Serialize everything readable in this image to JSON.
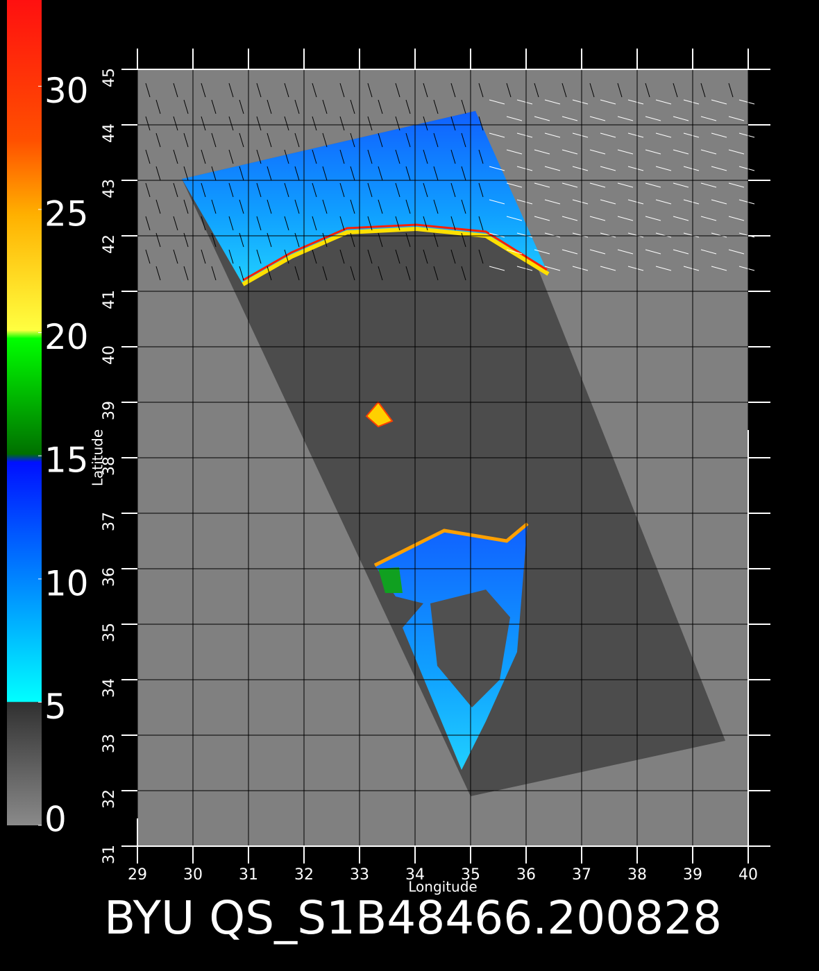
{
  "chart_data": {
    "type": "map",
    "title": "BYU QS_S1B48466.200828",
    "xlabel": "Longitude",
    "ylabel": "Latitude",
    "xlim": [
      29,
      40
    ],
    "ylim": [
      31,
      45
    ],
    "xticks": [
      29,
      30,
      31,
      32,
      33,
      34,
      35,
      36,
      37,
      38,
      39,
      40
    ],
    "yticks": [
      31,
      32,
      33,
      34,
      35,
      36,
      37,
      38,
      39,
      40,
      41,
      42,
      43,
      44,
      45
    ],
    "grid": true,
    "colorbar": {
      "lim": [
        0,
        33.5
      ],
      "ticks": [
        0,
        5,
        10,
        15,
        20,
        25,
        30
      ]
    }
  }
}
